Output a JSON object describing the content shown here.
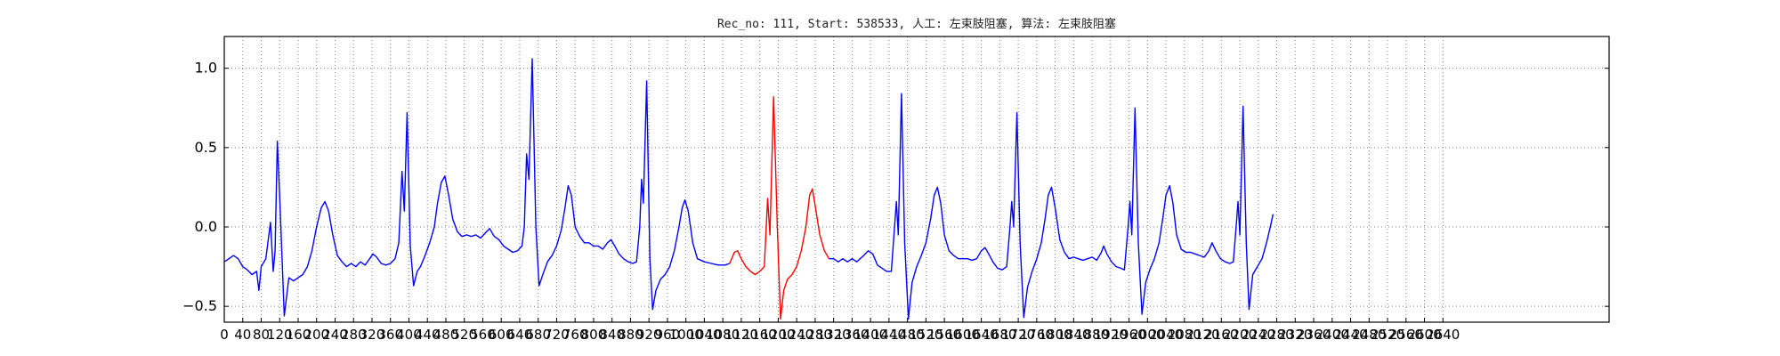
{
  "chart_data": {
    "type": "line",
    "title": "Rec_no: 111, Start: 538533, 人工: 左束肢阻塞, 算法: 左束肢阻塞",
    "xlabel": "",
    "ylabel": "",
    "xlim": [
      0,
      3000
    ],
    "ylim": [
      -0.6,
      1.2
    ],
    "grid": true,
    "x_ticks": [
      0,
      40,
      80,
      120,
      160,
      200,
      240,
      280,
      320,
      360,
      400,
      440,
      480,
      520,
      560,
      600,
      640,
      680,
      720,
      760,
      800,
      840,
      880,
      920,
      960,
      1000,
      1040,
      1080,
      1120,
      1160,
      1200,
      1240,
      1280,
      1320,
      1360,
      1400,
      1440,
      1480,
      1520,
      1560,
      1600,
      1640,
      1680,
      1720,
      1760,
      1800,
      1840,
      1880,
      1920,
      1960,
      2000,
      2040,
      2080,
      2120,
      2160,
      2200,
      2240,
      2280,
      2320,
      2360,
      2400,
      2440,
      2480,
      2520,
      2560,
      2600,
      2640
    ],
    "x_tick_labels": [
      "0",
      "40",
      "80",
      "120",
      "160",
      "200",
      "240",
      "280",
      "320",
      "360",
      "400",
      "440",
      "480",
      "520",
      "560",
      "600",
      "640",
      "680",
      "720",
      "760",
      "800",
      "840",
      "880",
      "920",
      "960",
      "1000",
      "1040",
      "1080",
      "1120",
      "1160",
      "1200",
      "1240",
      "1280",
      "1320",
      "1360",
      "1400",
      "1440",
      "1480",
      "1520",
      "1560",
      "1600",
      "1640",
      "1680",
      "1720",
      "1760",
      "1800",
      "1840",
      "1880",
      "1920",
      "1960",
      "2000",
      "2040",
      "2080",
      "2120",
      "2160",
      "2200",
      "2240",
      "2280",
      "2320",
      "2360",
      "2400",
      "2440",
      "2480",
      "2520",
      "2560",
      "2600",
      "2640"
    ],
    "y_ticks": [
      -0.5,
      0.0,
      0.5,
      1.0
    ],
    "y_tick_labels": [
      "−0.5",
      "0.0",
      "0.5",
      "1.0"
    ],
    "series": [
      {
        "color": "#0000ff",
        "points": [
          [
            0,
            -0.22
          ],
          [
            10,
            -0.2
          ],
          [
            20,
            -0.18
          ],
          [
            30,
            -0.2
          ],
          [
            40,
            -0.25
          ],
          [
            50,
            -0.27
          ],
          [
            60,
            -0.3
          ],
          [
            70,
            -0.28
          ],
          [
            75,
            -0.4
          ],
          [
            80,
            -0.25
          ],
          [
            90,
            -0.2
          ],
          [
            100,
            0.03
          ],
          [
            106,
            -0.28
          ],
          [
            110,
            -0.15
          ],
          [
            115,
            0.54
          ],
          [
            120,
            0.2
          ],
          [
            130,
            -0.56
          ],
          [
            140,
            -0.32
          ],
          [
            150,
            -0.34
          ],
          [
            160,
            -0.32
          ],
          [
            170,
            -0.3
          ],
          [
            180,
            -0.25
          ],
          [
            190,
            -0.15
          ],
          [
            200,
            0.0
          ],
          [
            210,
            0.12
          ],
          [
            218,
            0.16
          ],
          [
            226,
            0.1
          ],
          [
            235,
            -0.05
          ],
          [
            245,
            -0.18
          ],
          [
            255,
            -0.22
          ],
          [
            265,
            -0.25
          ],
          [
            275,
            -0.23
          ],
          [
            285,
            -0.25
          ],
          [
            295,
            -0.22
          ],
          [
            305,
            -0.24
          ],
          [
            315,
            -0.2
          ],
          [
            322,
            -0.17
          ],
          [
            330,
            -0.19
          ],
          [
            340,
            -0.23
          ],
          [
            350,
            -0.24
          ],
          [
            360,
            -0.23
          ],
          [
            370,
            -0.2
          ],
          [
            378,
            -0.1
          ],
          [
            385,
            0.35
          ],
          [
            390,
            0.1
          ],
          [
            396,
            0.72
          ],
          [
            403,
            -0.12
          ],
          [
            410,
            -0.37
          ],
          [
            418,
            -0.28
          ],
          [
            425,
            -0.25
          ],
          [
            435,
            -0.18
          ],
          [
            445,
            -0.1
          ],
          [
            455,
            0.0
          ],
          [
            462,
            0.15
          ],
          [
            470,
            0.28
          ],
          [
            478,
            0.32
          ],
          [
            486,
            0.2
          ],
          [
            495,
            0.05
          ],
          [
            505,
            -0.03
          ],
          [
            515,
            -0.06
          ],
          [
            525,
            -0.05
          ],
          [
            535,
            -0.06
          ],
          [
            545,
            -0.05
          ],
          [
            555,
            -0.07
          ],
          [
            565,
            -0.04
          ],
          [
            575,
            -0.01
          ],
          [
            585,
            -0.06
          ],
          [
            595,
            -0.08
          ],
          [
            605,
            -0.12
          ],
          [
            615,
            -0.14
          ],
          [
            625,
            -0.16
          ],
          [
            635,
            -0.15
          ],
          [
            645,
            -0.12
          ],
          [
            650,
            0.0
          ],
          [
            655,
            0.46
          ],
          [
            660,
            0.3
          ],
          [
            667,
            1.06
          ],
          [
            675,
            0.0
          ],
          [
            682,
            -0.37
          ],
          [
            690,
            -0.3
          ],
          [
            700,
            -0.22
          ],
          [
            710,
            -0.18
          ],
          [
            720,
            -0.12
          ],
          [
            730,
            -0.02
          ],
          [
            738,
            0.12
          ],
          [
            745,
            0.26
          ],
          [
            752,
            0.2
          ],
          [
            760,
            0.0
          ],
          [
            770,
            -0.06
          ],
          [
            780,
            -0.1
          ],
          [
            790,
            -0.1
          ],
          [
            800,
            -0.12
          ],
          [
            810,
            -0.12
          ],
          [
            820,
            -0.14
          ],
          [
            830,
            -0.1
          ],
          [
            838,
            -0.08
          ],
          [
            846,
            -0.12
          ],
          [
            855,
            -0.17
          ],
          [
            865,
            -0.2
          ],
          [
            875,
            -0.22
          ],
          [
            885,
            -0.23
          ],
          [
            893,
            -0.22
          ],
          [
            900,
            0.0
          ],
          [
            904,
            0.3
          ],
          [
            908,
            0.15
          ],
          [
            915,
            0.92
          ],
          [
            922,
            -0.2
          ],
          [
            928,
            -0.52
          ],
          [
            935,
            -0.4
          ],
          [
            945,
            -0.33
          ],
          [
            955,
            -0.3
          ],
          [
            965,
            -0.25
          ],
          [
            975,
            -0.15
          ],
          [
            985,
            0.0
          ],
          [
            992,
            0.12
          ],
          [
            998,
            0.17
          ],
          [
            1005,
            0.1
          ],
          [
            1015,
            -0.1
          ],
          [
            1025,
            -0.2
          ],
          [
            1040,
            -0.22
          ],
          [
            1055,
            -0.23
          ],
          [
            1070,
            -0.24
          ],
          [
            1085,
            -0.24
          ],
          [
            1095,
            -0.23
          ]
        ]
      },
      {
        "color": "#ff0000",
        "points": [
          [
            1095,
            -0.23
          ],
          [
            1105,
            -0.16
          ],
          [
            1112,
            -0.15
          ],
          [
            1120,
            -0.2
          ],
          [
            1130,
            -0.25
          ],
          [
            1140,
            -0.28
          ],
          [
            1150,
            -0.3
          ],
          [
            1160,
            -0.28
          ],
          [
            1170,
            -0.25
          ],
          [
            1177,
            0.18
          ],
          [
            1182,
            -0.05
          ],
          [
            1190,
            0.82
          ],
          [
            1198,
            0.0
          ],
          [
            1205,
            -0.58
          ],
          [
            1212,
            -0.4
          ],
          [
            1220,
            -0.33
          ],
          [
            1230,
            -0.3
          ],
          [
            1240,
            -0.25
          ],
          [
            1250,
            -0.15
          ],
          [
            1260,
            0.0
          ],
          [
            1268,
            0.2
          ],
          [
            1274,
            0.24
          ],
          [
            1282,
            0.1
          ],
          [
            1290,
            -0.05
          ],
          [
            1300,
            -0.15
          ],
          [
            1310,
            -0.2
          ]
        ]
      },
      {
        "color": "#0000ff",
        "points": [
          [
            1310,
            -0.2
          ],
          [
            1320,
            -0.2
          ],
          [
            1330,
            -0.22
          ],
          [
            1340,
            -0.2
          ],
          [
            1350,
            -0.22
          ],
          [
            1360,
            -0.2
          ],
          [
            1370,
            -0.22
          ],
          [
            1385,
            -0.18
          ],
          [
            1395,
            -0.15
          ],
          [
            1405,
            -0.17
          ],
          [
            1415,
            -0.24
          ],
          [
            1425,
            -0.26
          ],
          [
            1435,
            -0.28
          ],
          [
            1445,
            -0.28
          ],
          [
            1452,
            0.0
          ],
          [
            1456,
            0.16
          ],
          [
            1460,
            -0.05
          ],
          [
            1467,
            0.84
          ],
          [
            1474,
            -0.1
          ],
          [
            1482,
            -0.58
          ],
          [
            1490,
            -0.35
          ],
          [
            1500,
            -0.25
          ],
          [
            1510,
            -0.18
          ],
          [
            1520,
            -0.1
          ],
          [
            1530,
            0.05
          ],
          [
            1538,
            0.2
          ],
          [
            1545,
            0.25
          ],
          [
            1552,
            0.15
          ],
          [
            1560,
            -0.05
          ],
          [
            1570,
            -0.15
          ],
          [
            1580,
            -0.18
          ],
          [
            1590,
            -0.2
          ],
          [
            1600,
            -0.2
          ],
          [
            1610,
            -0.2
          ],
          [
            1620,
            -0.21
          ],
          [
            1630,
            -0.2
          ],
          [
            1640,
            -0.15
          ],
          [
            1648,
            -0.13
          ],
          [
            1656,
            -0.17
          ],
          [
            1665,
            -0.22
          ],
          [
            1675,
            -0.26
          ],
          [
            1685,
            -0.27
          ],
          [
            1695,
            -0.25
          ],
          [
            1702,
            0.0
          ],
          [
            1706,
            0.16
          ],
          [
            1710,
            0.0
          ],
          [
            1717,
            0.72
          ],
          [
            1724,
            -0.1
          ],
          [
            1732,
            -0.57
          ],
          [
            1740,
            -0.38
          ],
          [
            1750,
            -0.28
          ],
          [
            1760,
            -0.2
          ],
          [
            1770,
            -0.1
          ],
          [
            1778,
            0.05
          ],
          [
            1785,
            0.2
          ],
          [
            1792,
            0.25
          ],
          [
            1800,
            0.12
          ],
          [
            1810,
            -0.08
          ],
          [
            1820,
            -0.16
          ],
          [
            1830,
            -0.2
          ],
          [
            1840,
            -0.19
          ],
          [
            1850,
            -0.2
          ],
          [
            1860,
            -0.21
          ],
          [
            1870,
            -0.2
          ],
          [
            1880,
            -0.19
          ],
          [
            1890,
            -0.21
          ],
          [
            1900,
            -0.16
          ],
          [
            1905,
            -0.12
          ],
          [
            1912,
            -0.17
          ],
          [
            1922,
            -0.22
          ],
          [
            1932,
            -0.25
          ],
          [
            1942,
            -0.26
          ],
          [
            1950,
            -0.27
          ],
          [
            1958,
            0.0
          ],
          [
            1962,
            0.16
          ],
          [
            1966,
            -0.05
          ],
          [
            1973,
            0.75
          ],
          [
            1980,
            -0.1
          ],
          [
            1988,
            -0.55
          ],
          [
            1996,
            -0.35
          ],
          [
            2005,
            -0.27
          ],
          [
            2015,
            -0.2
          ],
          [
            2025,
            -0.1
          ],
          [
            2033,
            0.05
          ],
          [
            2040,
            0.2
          ],
          [
            2048,
            0.26
          ],
          [
            2055,
            0.15
          ],
          [
            2063,
            -0.05
          ],
          [
            2073,
            -0.14
          ],
          [
            2083,
            -0.16
          ],
          [
            2093,
            -0.16
          ],
          [
            2103,
            -0.17
          ],
          [
            2113,
            -0.18
          ],
          [
            2123,
            -0.19
          ],
          [
            2133,
            -0.15
          ],
          [
            2140,
            -0.1
          ],
          [
            2148,
            -0.15
          ],
          [
            2158,
            -0.2
          ],
          [
            2168,
            -0.22
          ],
          [
            2178,
            -0.23
          ],
          [
            2186,
            -0.22
          ],
          [
            2192,
            0.0
          ],
          [
            2196,
            0.16
          ],
          [
            2200,
            -0.05
          ],
          [
            2207,
            0.76
          ],
          [
            2214,
            -0.1
          ],
          [
            2220,
            -0.52
          ],
          [
            2228,
            -0.3
          ],
          [
            2238,
            -0.25
          ],
          [
            2248,
            -0.2
          ],
          [
            2258,
            -0.1
          ],
          [
            2266,
            0.0
          ],
          [
            2272,
            0.08
          ]
        ]
      }
    ]
  }
}
